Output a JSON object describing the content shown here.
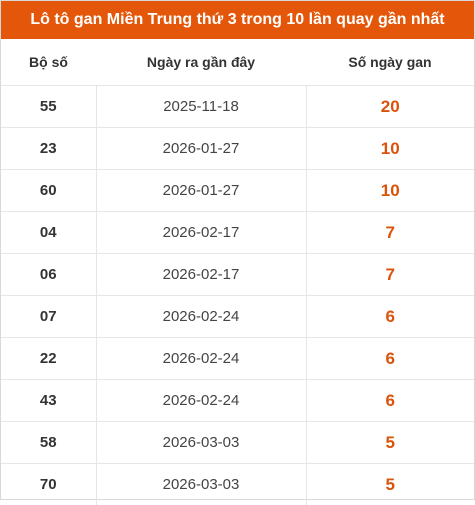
{
  "title": "Lô tô gan Miền Trung thứ 3 trong 10 lần quay gần nhất",
  "headers": {
    "number": "Bộ số",
    "recent_date": "Ngày ra gần đây",
    "days_gan": "Số ngày gan"
  },
  "rows": [
    {
      "number": "55",
      "date": "2025-11-18",
      "days": "20"
    },
    {
      "number": "23",
      "date": "2026-01-27",
      "days": "10"
    },
    {
      "number": "60",
      "date": "2026-01-27",
      "days": "10"
    },
    {
      "number": "04",
      "date": "2026-02-17",
      "days": "7"
    },
    {
      "number": "06",
      "date": "2026-02-17",
      "days": "7"
    },
    {
      "number": "07",
      "date": "2026-02-24",
      "days": "6"
    },
    {
      "number": "22",
      "date": "2026-02-24",
      "days": "6"
    },
    {
      "number": "43",
      "date": "2026-02-24",
      "days": "6"
    },
    {
      "number": "58",
      "date": "2026-03-03",
      "days": "5"
    },
    {
      "number": "70",
      "date": "2026-03-03",
      "days": "5"
    }
  ],
  "colors": {
    "header_bar": "#e4570a",
    "highlight_value": "#d9530b"
  }
}
